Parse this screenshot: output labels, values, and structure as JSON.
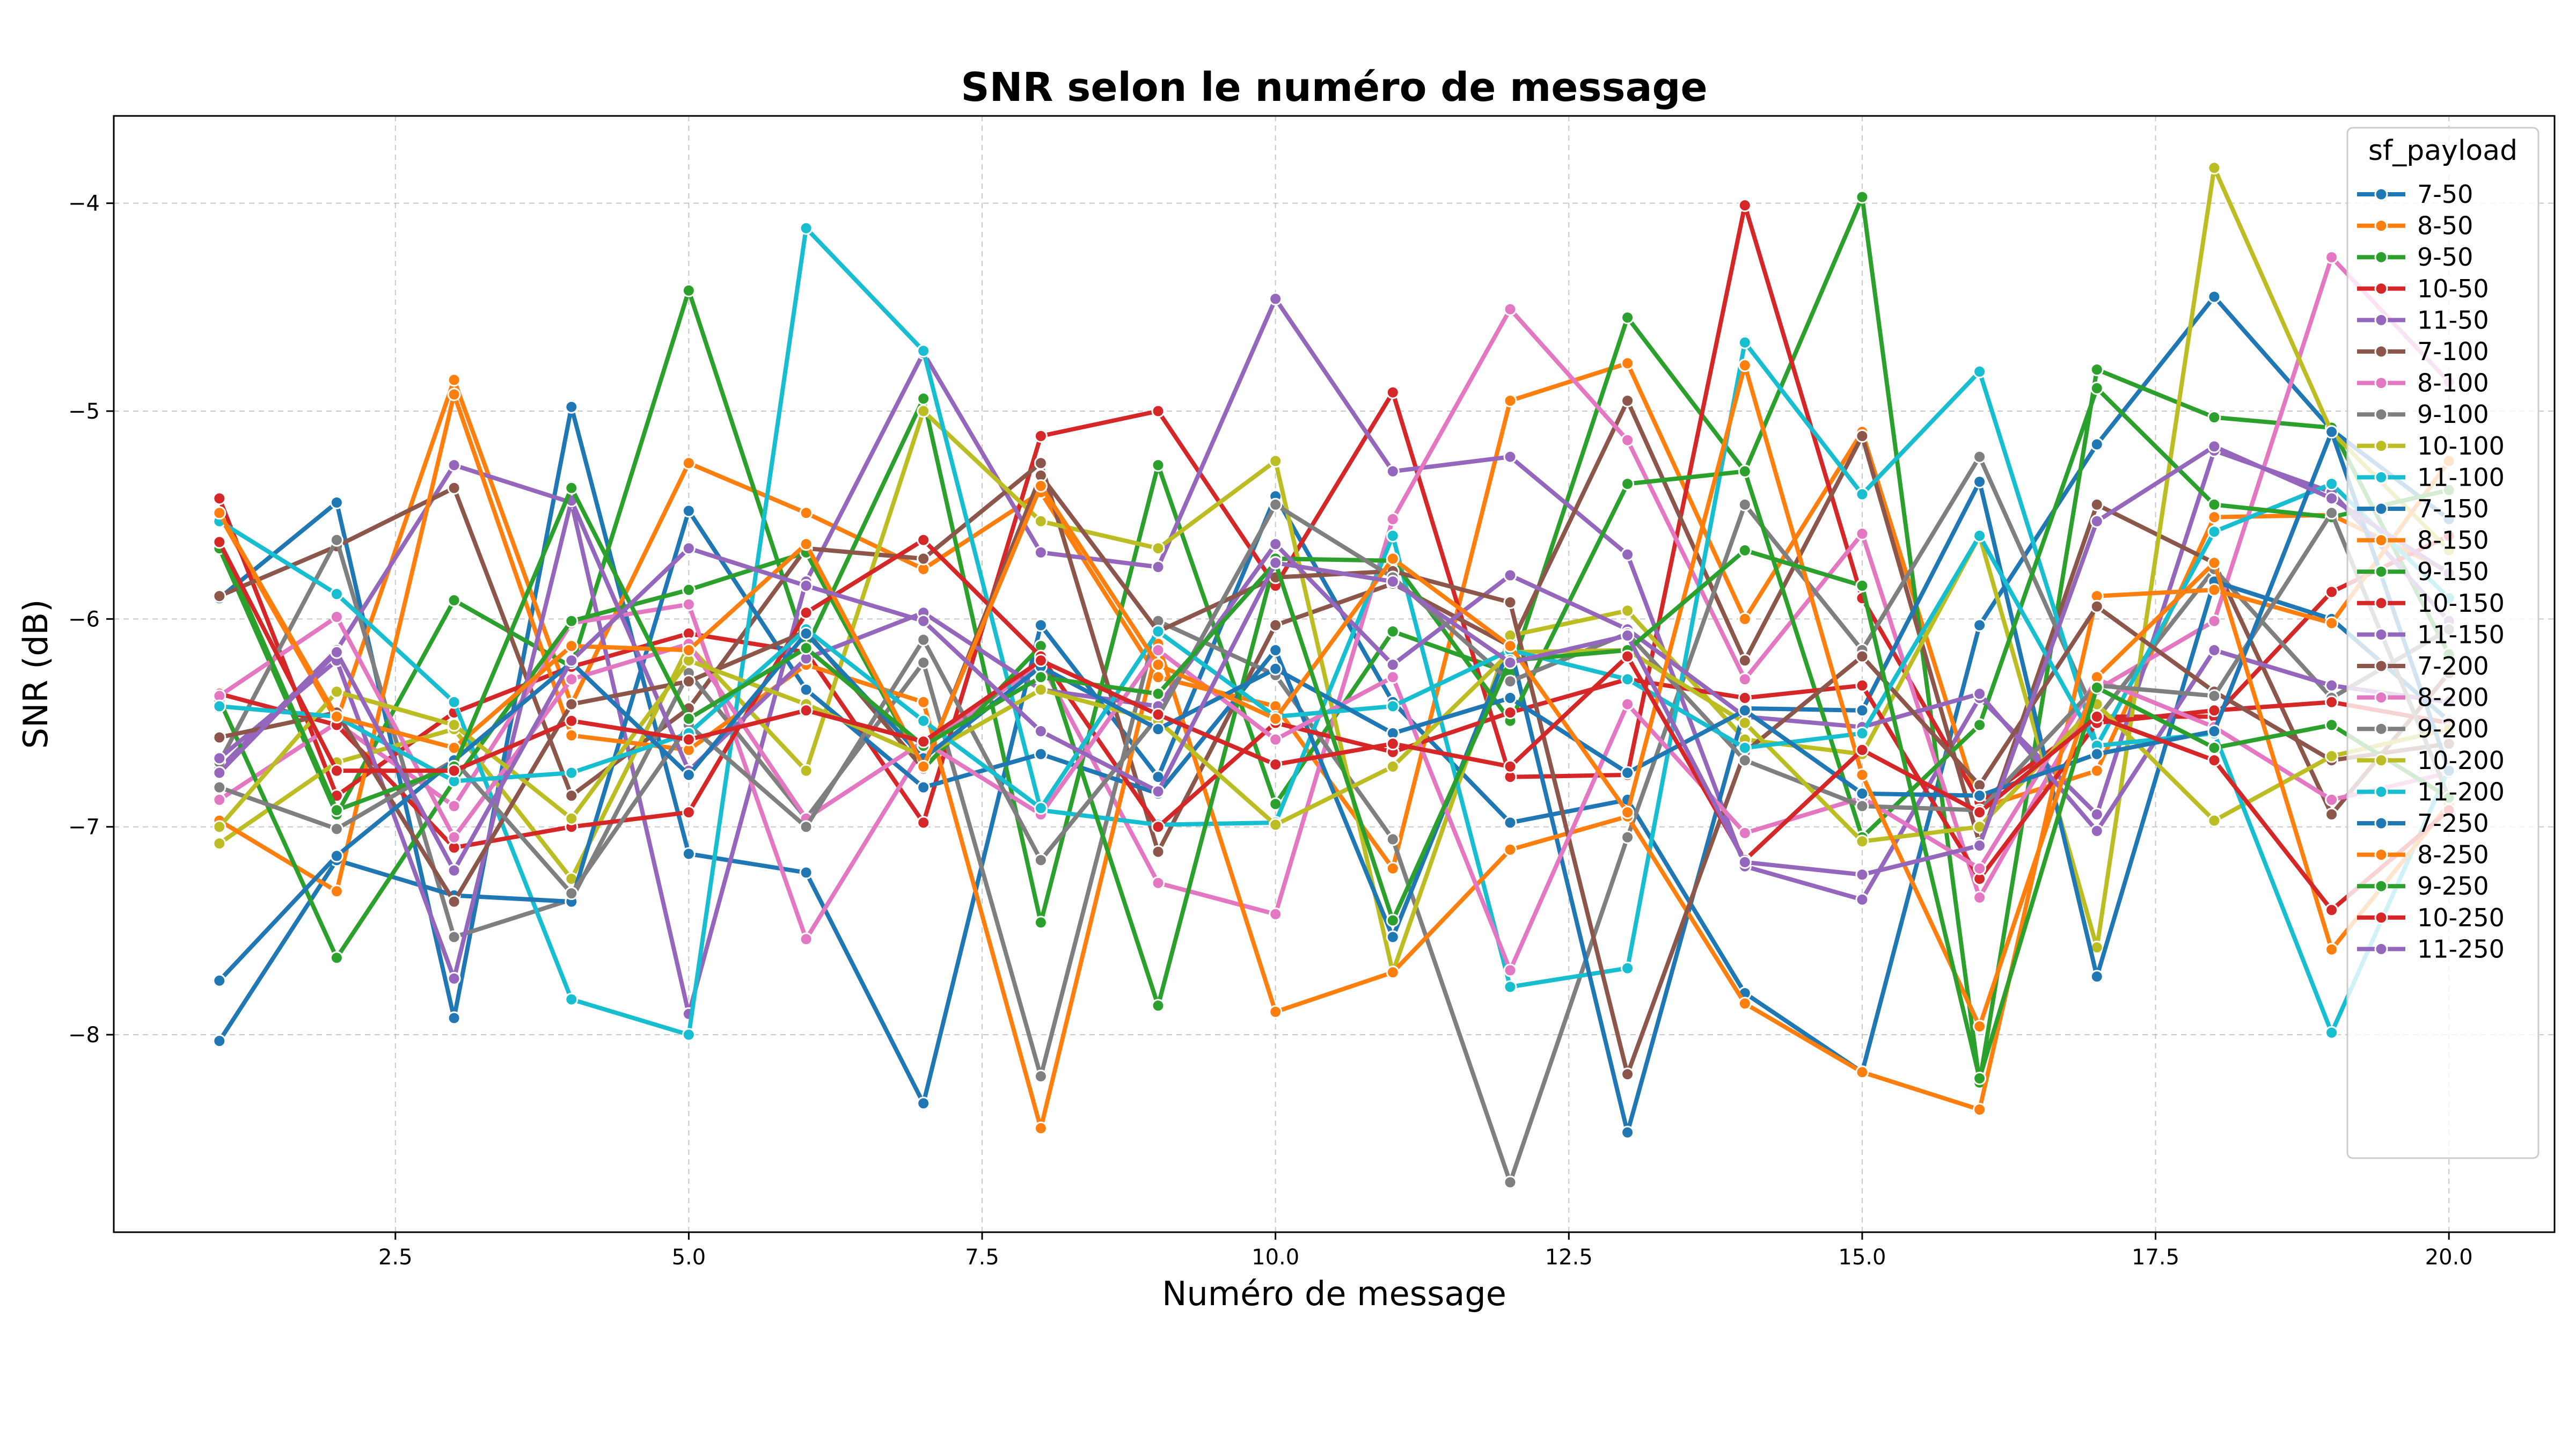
{
  "chart_data": {
    "type": "line",
    "title": "SNR selon le numéro de message",
    "xlabel": "Numéro de message",
    "ylabel": "SNR (dB)",
    "xlim": [
      0.1,
      20.9
    ],
    "ylim": [
      -8.95,
      -3.58
    ],
    "xticks": [
      2.5,
      5.0,
      7.5,
      10.0,
      12.5,
      15.0,
      17.5,
      20.0
    ],
    "xtick_labels": [
      "2.5",
      "5.0",
      "7.5",
      "10.0",
      "12.5",
      "15.0",
      "17.5",
      "20.0"
    ],
    "yticks": [
      -8,
      -7,
      -6,
      -5,
      -4
    ],
    "ytick_labels": [
      "−8",
      "−7",
      "−6",
      "−5",
      "−4"
    ],
    "grid": true,
    "legend": {
      "title": "sf_payload",
      "position": "top-right"
    },
    "x": [
      1,
      2,
      3,
      4,
      5,
      6,
      7,
      8,
      9,
      10,
      11,
      12,
      13,
      14,
      15,
      16,
      17,
      18,
      19,
      20
    ],
    "series": [
      {
        "name": "7-50",
        "color": "#1f77b4",
        "values": [
          -5.9,
          -5.44,
          -7.92,
          -4.98,
          -7.13,
          -7.22,
          -8.33,
          -6.03,
          -6.76,
          -5.41,
          -6.4,
          -6.98,
          -6.87,
          -7.8,
          -8.18,
          -6.03,
          -5.16,
          -4.45,
          -5.09,
          -5.52
        ]
      },
      {
        "name": "8-50",
        "color": "#ff7f0e",
        "values": [
          -5.5,
          -6.49,
          -4.85,
          -6.41,
          -5.25,
          -5.49,
          -5.76,
          -5.39,
          -6.28,
          -6.42,
          -7.2,
          -4.95,
          -4.77,
          -6.0,
          -5.1,
          -6.91,
          -6.73,
          -5.51,
          -5.5,
          -5.77
        ]
      },
      {
        "name": "9-50",
        "color": "#2ca02c",
        "values": [
          -5.66,
          -6.94,
          -5.91,
          -6.23,
          -4.42,
          -6.14,
          -4.94,
          -7.46,
          -5.26,
          -6.89,
          -6.06,
          -6.26,
          -4.55,
          -5.29,
          -3.97,
          -8.23,
          -4.8,
          -5.03,
          -5.08,
          -6.17
        ]
      },
      {
        "name": "10-50",
        "color": "#d62728",
        "values": [
          -5.42,
          -6.85,
          -6.45,
          -6.23,
          -6.07,
          -6.16,
          -6.98,
          -5.12,
          -5.0,
          -5.84,
          -4.91,
          -6.76,
          -6.75,
          -4.01,
          -5.9,
          -6.88,
          -6.47,
          -6.47,
          -5.87,
          -5.6
        ]
      },
      {
        "name": "11-50",
        "color": "#9467bd",
        "values": [
          -6.72,
          -6.15,
          -5.26,
          -5.44,
          -7.9,
          -5.82,
          -4.72,
          -5.68,
          -5.75,
          -4.46,
          -5.29,
          -5.22,
          -5.69,
          -7.19,
          -7.35,
          -6.38,
          -6.94,
          -5.19,
          -5.39,
          -6.01
        ]
      },
      {
        "name": "7-100",
        "color": "#8c564b",
        "values": [
          -5.89,
          -5.65,
          -5.37,
          -6.85,
          -6.43,
          -5.66,
          -5.71,
          -5.25,
          -7.12,
          -6.03,
          -5.83,
          -6.13,
          -4.95,
          -6.2,
          -5.12,
          -7.08,
          -5.45,
          -5.73,
          -6.94,
          -6.26
        ]
      },
      {
        "name": "8-100",
        "color": "#e377c2",
        "values": [
          -6.87,
          -6.5,
          -6.9,
          -6.02,
          -5.93,
          -7.54,
          -6.62,
          -6.21,
          -7.27,
          -7.42,
          -5.52,
          -4.51,
          -5.14,
          -6.29,
          -5.59,
          -7.34,
          -6.34,
          -6.01,
          -4.26,
          -4.86
        ]
      },
      {
        "name": "9-100",
        "color": "#7f7f7f",
        "values": [
          -6.69,
          -5.62,
          -7.53,
          -7.35,
          -6.26,
          -6.96,
          -6.21,
          -8.2,
          -6.01,
          -6.27,
          -7.06,
          -8.71,
          -7.05,
          -5.45,
          -6.15,
          -5.22,
          -6.48,
          -5.76,
          -6.38,
          -6.05
        ]
      },
      {
        "name": "10-100",
        "color": "#bcbd22",
        "values": [
          -7.08,
          -6.69,
          -6.53,
          -7.25,
          -6.13,
          -6.73,
          -5.0,
          -5.53,
          -5.66,
          -5.24,
          -7.7,
          -6.08,
          -5.96,
          -6.58,
          -6.65,
          -5.6,
          -7.58,
          -3.83,
          -5.1,
          -5.67
        ]
      },
      {
        "name": "11-100",
        "color": "#17becf",
        "values": [
          -5.53,
          -5.88,
          -6.4,
          -7.83,
          -8.0,
          -4.12,
          -4.71,
          -6.92,
          -6.99,
          -6.98,
          -5.6,
          -7.77,
          -7.68,
          -4.67,
          -5.4,
          -4.81,
          -6.61,
          -5.58,
          -5.35,
          -5.9
        ]
      },
      {
        "name": "7-150",
        "color": "#1f77b4",
        "values": [
          -8.03,
          -7.16,
          -7.33,
          -7.36,
          -5.48,
          -6.34,
          -6.81,
          -6.65,
          -6.84,
          -6.15,
          -7.53,
          -6.13,
          -8.47,
          -6.43,
          -6.44,
          -5.34,
          -7.72,
          -5.82,
          -6.0,
          -6.49
        ]
      },
      {
        "name": "8-150",
        "color": "#ff7f0e",
        "values": [
          -6.97,
          -7.31,
          -4.92,
          -6.56,
          -6.63,
          -6.22,
          -6.4,
          -8.45,
          -6.12,
          -7.89,
          -7.7,
          -7.11,
          -6.95,
          -7.85,
          -8.18,
          -8.36,
          -5.89,
          -5.86,
          -6.02,
          -5.24
        ]
      },
      {
        "name": "9-150",
        "color": "#2ca02c",
        "values": [
          -6.39,
          -7.63,
          -6.78,
          -6.01,
          -5.86,
          -5.68,
          -6.72,
          -6.13,
          -7.86,
          -5.71,
          -5.72,
          -6.49,
          -5.35,
          -5.29,
          -7.05,
          -6.51,
          -4.89,
          -5.45,
          -5.51,
          -5.38
        ]
      },
      {
        "name": "10-150",
        "color": "#d62728",
        "values": [
          -6.36,
          -6.51,
          -7.1,
          -7.0,
          -6.93,
          -5.97,
          -5.62,
          -6.18,
          -7.0,
          -6.5,
          -6.64,
          -6.45,
          -6.29,
          -6.38,
          -6.32,
          -7.25,
          -6.5,
          -6.44,
          -6.4,
          -6.5
        ]
      },
      {
        "name": "11-150",
        "color": "#9467bd",
        "values": [
          -6.67,
          -6.2,
          -7.73,
          -5.43,
          -6.73,
          -6.19,
          -5.97,
          -6.34,
          -6.42,
          -5.64,
          -6.22,
          -5.79,
          -6.05,
          -6.47,
          -6.52,
          -6.36,
          -7.02,
          -6.15,
          -6.32,
          -6.4
        ]
      },
      {
        "name": "7-200",
        "color": "#8c564b",
        "values": [
          -6.57,
          -6.45,
          -7.36,
          -6.41,
          -6.3,
          -6.06,
          -6.72,
          -5.31,
          -6.06,
          -5.8,
          -5.77,
          -5.92,
          -8.19,
          -6.64,
          -6.18,
          -6.8,
          -5.94,
          -6.35,
          -6.68,
          -6.6
        ]
      },
      {
        "name": "8-200",
        "color": "#e377c2",
        "values": [
          -6.37,
          -5.99,
          -7.05,
          -6.29,
          -6.12,
          -6.96,
          -6.59,
          -6.94,
          -6.15,
          -6.58,
          -6.28,
          -7.69,
          -6.41,
          -7.03,
          -6.86,
          -7.2,
          -6.29,
          -6.52,
          -6.87,
          -6.74
        ]
      },
      {
        "name": "9-200",
        "color": "#7f7f7f",
        "values": [
          -6.81,
          -7.01,
          -6.68,
          -7.32,
          -6.51,
          -7.0,
          -6.1,
          -7.16,
          -6.47,
          -5.45,
          -5.8,
          -6.3,
          -6.07,
          -6.68,
          -6.9,
          -6.92,
          -6.32,
          -6.37,
          -5.49,
          -6.86
        ]
      },
      {
        "name": "10-200",
        "color": "#bcbd22",
        "values": [
          -7.0,
          -6.35,
          -6.51,
          -6.96,
          -6.2,
          -6.41,
          -6.66,
          -6.34,
          -6.49,
          -6.99,
          -6.71,
          -6.16,
          -6.15,
          -6.5,
          -7.07,
          -7.0,
          -6.41,
          -6.97,
          -6.66,
          -6.53
        ]
      },
      {
        "name": "11-200",
        "color": "#17becf",
        "values": [
          -6.42,
          -6.47,
          -6.78,
          -6.74,
          -6.55,
          -6.05,
          -6.49,
          -6.91,
          -6.06,
          -6.47,
          -6.42,
          -6.15,
          -6.29,
          -6.62,
          -6.55,
          -5.6,
          -6.61,
          -6.55,
          -7.99,
          -6.72
        ]
      },
      {
        "name": "7-250",
        "color": "#1f77b4",
        "values": [
          -7.74,
          -7.14,
          -6.68,
          -6.21,
          -6.75,
          -6.07,
          -6.67,
          -6.23,
          -6.53,
          -6.24,
          -6.55,
          -6.38,
          -6.74,
          -6.44,
          -6.84,
          -6.85,
          -6.65,
          -6.54,
          -5.1,
          -6.73
        ]
      },
      {
        "name": "8-250",
        "color": "#ff7f0e",
        "values": [
          -5.49,
          -6.47,
          -6.62,
          -6.13,
          -6.15,
          -5.64,
          -6.71,
          -5.36,
          -6.22,
          -6.48,
          -5.71,
          -6.13,
          -6.93,
          -4.78,
          -6.75,
          -7.96,
          -6.28,
          -5.73,
          -7.59,
          -6.89
        ]
      },
      {
        "name": "9-250",
        "color": "#2ca02c",
        "values": [
          -5.63,
          -6.92,
          -6.71,
          -5.37,
          -6.48,
          -6.14,
          -6.61,
          -6.28,
          -6.36,
          -5.73,
          -7.45,
          -6.2,
          -6.15,
          -5.67,
          -5.84,
          -8.21,
          -6.33,
          -6.62,
          -6.51,
          -6.86
        ]
      },
      {
        "name": "10-250",
        "color": "#d62728",
        "values": [
          -5.63,
          -6.73,
          -6.73,
          -6.49,
          -6.58,
          -6.44,
          -6.59,
          -6.2,
          -6.46,
          -6.7,
          -6.6,
          -6.71,
          -6.18,
          -7.16,
          -6.63,
          -6.93,
          -6.47,
          -6.68,
          -7.4,
          -6.92
        ]
      },
      {
        "name": "11-250",
        "color": "#9467bd",
        "values": [
          -6.74,
          -6.16,
          -7.21,
          -6.2,
          -5.66,
          -5.84,
          -6.01,
          -6.54,
          -6.83,
          -5.73,
          -5.82,
          -6.21,
          -6.08,
          -7.17,
          -7.23,
          -7.09,
          -5.53,
          -5.17,
          -5.42,
          -5.78
        ]
      }
    ]
  }
}
